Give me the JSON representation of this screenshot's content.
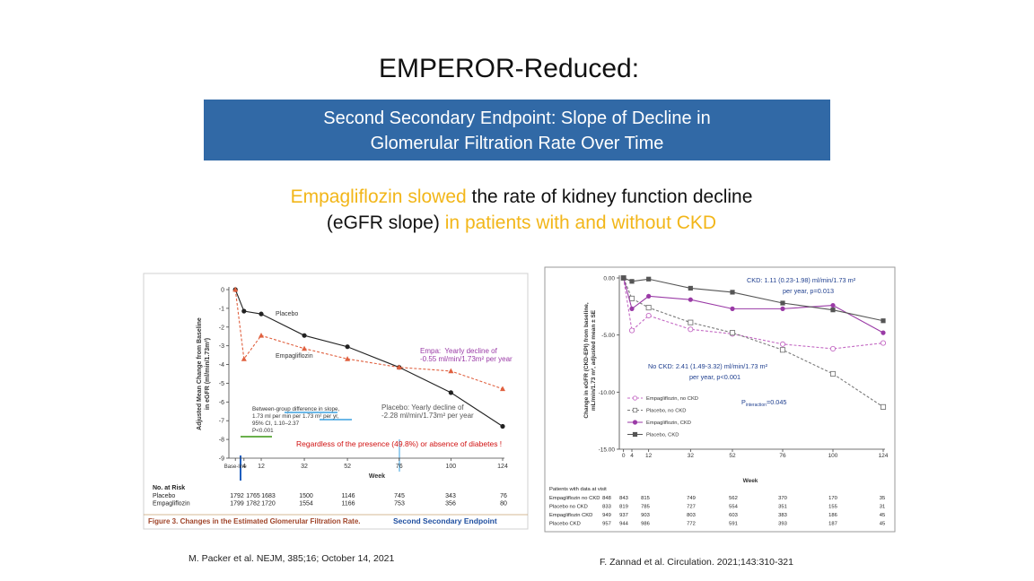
{
  "title": "EMPEROR-Reduced:",
  "banner": [
    "Second Secondary Endpoint: Slope of Decline in",
    "Glomerular Filtration Rate Over Time"
  ],
  "subtitle": [
    [
      {
        "text": "Empagliflozin slowed",
        "color": "#f2b619"
      },
      {
        "text": " the rate of kidney function decline",
        "color": "#111111"
      }
    ],
    [
      {
        "text": "(eGFR slope) ",
        "color": "#111111"
      },
      {
        "text": "in patients with and without CKD",
        "color": "#f2b619"
      }
    ]
  ],
  "citations": [
    "M. Packer et al. NEJM, 385;16; October 14, 2021",
    "F. Zannad et al. Circulation. 2021;143:310-321"
  ],
  "chart_data": [
    {
      "type": "line",
      "x_label": "Week",
      "y_label": [
        "Adjusted Mean Change from Baseline",
        "in eGFR (ml/min/1.73m²)"
      ],
      "x": [
        0,
        4,
        12,
        32,
        52,
        76,
        100,
        124
      ],
      "xlim": [
        -3,
        124
      ],
      "xticks": [
        {
          "value": 0,
          "label": "Base-line"
        },
        4,
        12,
        32,
        52,
        76,
        100,
        124
      ],
      "ylim": [
        -9,
        0
      ],
      "yticks": [
        0,
        -1,
        -2,
        -3,
        -4,
        -5,
        -6,
        -7,
        -8,
        -9
      ],
      "series": [
        {
          "name": "Placebo",
          "color": "#222222",
          "style": "solid",
          "marker": "filled-circle",
          "values": [
            0,
            -1.15,
            -1.3,
            -2.45,
            -3.05,
            -4.15,
            -5.5,
            -7.3
          ]
        },
        {
          "name": "Empagliflozin",
          "color": "#e0603f",
          "style": "dashed",
          "marker": "triangle",
          "values": [
            0,
            -3.7,
            -2.45,
            -3.15,
            -3.7,
            -4.15,
            -4.35,
            -5.3
          ]
        }
      ],
      "annotations": [
        {
          "lines": [
            "Empa:  Yearly decline of",
            "-0.55 ml/min/1.73m² per year"
          ]
        },
        {
          "lines": [
            "Between-group difference in slope,",
            "1.73 ml per min per 1.73 m² per yr,",
            "95% CI, 1.10–2.37",
            "P<0.001"
          ]
        },
        {
          "lines": [
            "Placebo: Yearly decline of",
            "-2.28 ml/min/1.73m² per year"
          ]
        },
        {
          "lines": [
            "Regardless of the presence (49.8%) or absence of diabetes !"
          ]
        }
      ],
      "risk_table": {
        "title": "No. at Risk",
        "rows": [
          {
            "name": "Placebo",
            "values": [
              1792,
              1765,
              1683,
              1500,
              1146,
              745,
              343,
              76
            ]
          },
          {
            "name": "Empagliflozin",
            "values": [
              1799,
              1782,
              1720,
              1554,
              1166,
              753,
              356,
              80
            ]
          }
        ]
      },
      "caption": "Figure 3. Changes in the Estimated Glomerular Filtration Rate.",
      "caption_note": "Second Secondary Endpoint"
    },
    {
      "type": "line",
      "x_label": "Week",
      "y_label": [
        "Change in eGFR (CKD-EPI) from baseline,",
        "mL/min/1.73 m², adjusted mean ± SE"
      ],
      "x": [
        0,
        4,
        12,
        32,
        52,
        76,
        100,
        124
      ],
      "xlim": [
        -2,
        124
      ],
      "xticks": [
        0,
        4,
        12,
        32,
        52,
        76,
        100,
        124
      ],
      "ylim": [
        -15,
        0
      ],
      "yticks": [
        {
          "value": 0,
          "label": "0.00"
        },
        {
          "value": -5,
          "label": "-5.00"
        },
        {
          "value": -10,
          "label": "-10.00"
        },
        {
          "value": -15,
          "label": "-15.00"
        }
      ],
      "series": [
        {
          "name": "Empagliflozin, no CKD",
          "color": "#c46ac4",
          "style": "dashed",
          "marker": "open-circle",
          "values": [
            0,
            -4.6,
            -3.3,
            -4.5,
            -4.9,
            -5.8,
            -6.2,
            -5.7
          ]
        },
        {
          "name": "Placebo, no CKD",
          "color": "#7a7a7a",
          "style": "dashed",
          "marker": "open-square",
          "values": [
            0,
            -1.8,
            -2.6,
            -3.9,
            -4.8,
            -6.3,
            -8.4,
            -11.3
          ]
        },
        {
          "name": "Empagliflozin, CKD",
          "color": "#9a3aa6",
          "style": "solid",
          "marker": "filled-circle",
          "values": [
            0,
            -2.7,
            -1.6,
            -1.9,
            -2.7,
            -2.7,
            -2.4,
            -4.8
          ]
        },
        {
          "name": "Placebo, CKD",
          "color": "#555555",
          "style": "solid",
          "marker": "filled-square",
          "values": [
            0,
            -0.3,
            -0.1,
            -0.9,
            -1.25,
            -2.2,
            -2.8,
            -3.75
          ]
        }
      ],
      "annotations": [
        {
          "lines": [
            "CKD: 1.11 (0.23-1.98) ml/min/1.73 m²",
            "per year, p=0.013"
          ]
        },
        {
          "lines": [
            "No CKD: 2.41 (1.49-3.32) ml/min/1.73 m²",
            "per year, p<0.001"
          ]
        }
      ],
      "p_interaction": {
        "p": "P",
        "sub": "interaction",
        "value": "=0.045"
      },
      "risk_table": {
        "title": "Patients with data at visit",
        "rows": [
          {
            "name": "Empagliflozin no CKD",
            "values": [
              848,
              843,
              815,
              749,
              562,
              370,
              170,
              35
            ]
          },
          {
            "name": "Placebo no CKD",
            "values": [
              833,
              819,
              785,
              727,
              554,
              351,
              155,
              31
            ]
          },
          {
            "name": "Empagliflozin CKD",
            "values": [
              949,
              937,
              903,
              803,
              603,
              383,
              186,
              45
            ]
          },
          {
            "name": "Placebo CKD",
            "values": [
              957,
              944,
              986,
              772,
              591,
              393,
              187,
              45
            ]
          }
        ]
      }
    }
  ]
}
